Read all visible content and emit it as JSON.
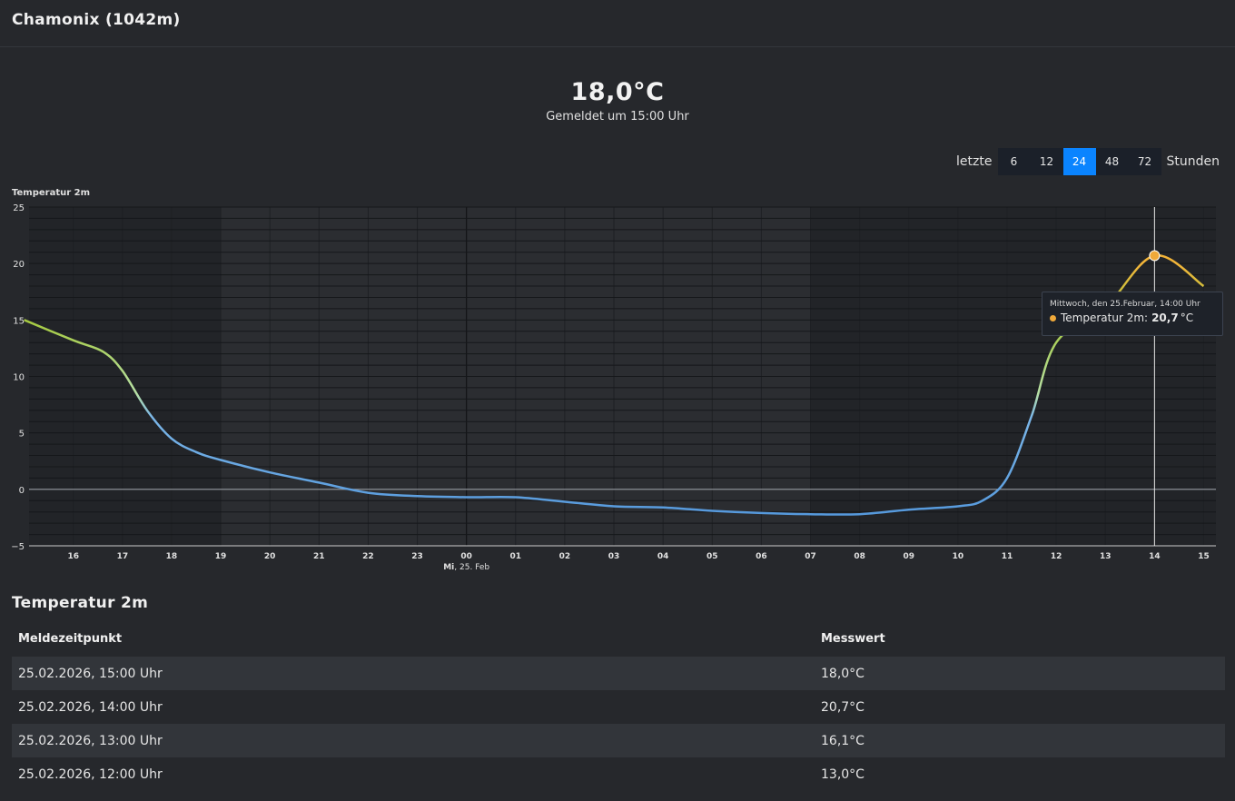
{
  "header": {
    "title": "Chamonix (1042m)"
  },
  "current": {
    "value": "18,0°C",
    "reported": "Gemeldet um 15:00 Uhr"
  },
  "range": {
    "prefix": "letzte",
    "suffix": "Stunden",
    "options": [
      "6",
      "12",
      "24",
      "48",
      "72"
    ],
    "selected": "24"
  },
  "chart_data": {
    "type": "line",
    "ylabel": "Temperatur 2m",
    "ylim": [
      -5,
      25
    ],
    "yticks": [
      -5,
      0,
      5,
      10,
      15,
      20,
      25
    ],
    "xlim": [
      15.1,
      39.25
    ],
    "xticks": [
      {
        "x": 16,
        "label": "16"
      },
      {
        "x": 17,
        "label": "17"
      },
      {
        "x": 18,
        "label": "18"
      },
      {
        "x": 19,
        "label": "19"
      },
      {
        "x": 20,
        "label": "20"
      },
      {
        "x": 21,
        "label": "21"
      },
      {
        "x": 22,
        "label": "22"
      },
      {
        "x": 23,
        "label": "23"
      },
      {
        "x": 24,
        "label": "00"
      },
      {
        "x": 25,
        "label": "01"
      },
      {
        "x": 26,
        "label": "02"
      },
      {
        "x": 27,
        "label": "03"
      },
      {
        "x": 28,
        "label": "04"
      },
      {
        "x": 29,
        "label": "05"
      },
      {
        "x": 30,
        "label": "06"
      },
      {
        "x": 31,
        "label": "07"
      },
      {
        "x": 32,
        "label": "08"
      },
      {
        "x": 33,
        "label": "09"
      },
      {
        "x": 34,
        "label": "10"
      },
      {
        "x": 35,
        "label": "11"
      },
      {
        "x": 36,
        "label": "12"
      },
      {
        "x": 37,
        "label": "13"
      },
      {
        "x": 38,
        "label": "14"
      },
      {
        "x": 39,
        "label": "15"
      }
    ],
    "date_label_prefix": "Mi",
    "date_label": ", 25. Feb",
    "series": [
      {
        "points": [
          [
            15,
            15.0
          ],
          [
            16,
            13.2
          ],
          [
            16.6,
            12.2
          ],
          [
            17,
            10.5
          ],
          [
            17.5,
            7.0
          ],
          [
            18,
            4.5
          ],
          [
            18.5,
            3.3
          ],
          [
            19,
            2.6
          ],
          [
            20,
            1.5
          ],
          [
            21,
            0.6
          ],
          [
            22,
            -0.3
          ],
          [
            23,
            -0.6
          ],
          [
            24,
            -0.7
          ],
          [
            25,
            -0.7
          ],
          [
            26,
            -1.1
          ],
          [
            27,
            -1.5
          ],
          [
            28,
            -1.6
          ],
          [
            29,
            -1.9
          ],
          [
            30,
            -2.1
          ],
          [
            31,
            -2.2
          ],
          [
            32,
            -2.2
          ],
          [
            33,
            -1.8
          ],
          [
            34,
            -1.5
          ],
          [
            34.5,
            -1.0
          ],
          [
            35,
            1.0
          ],
          [
            35.5,
            6.5
          ],
          [
            36,
            13.0
          ],
          [
            37,
            16.1
          ],
          [
            38,
            20.7
          ],
          [
            39,
            18.0
          ]
        ]
      }
    ],
    "highlight": {
      "x": 38,
      "y": 20.7
    }
  },
  "tooltip": {
    "title": "Mittwoch, den 25.Februar, 14:00 Uhr",
    "series": "Temperatur 2m:",
    "value": "20,7",
    "unit": "°C"
  },
  "table": {
    "title": "Temperatur 2m",
    "headers": [
      "Meldezeitpunkt",
      "Messwert"
    ],
    "rows": [
      [
        "25.02.2026, 15:00 Uhr",
        "18,0°C"
      ],
      [
        "25.02.2026, 14:00 Uhr",
        "20,7°C"
      ],
      [
        "25.02.2026, 13:00 Uhr",
        "16,1°C"
      ],
      [
        "25.02.2026, 12:00 Uhr",
        "13,0°C"
      ]
    ]
  }
}
